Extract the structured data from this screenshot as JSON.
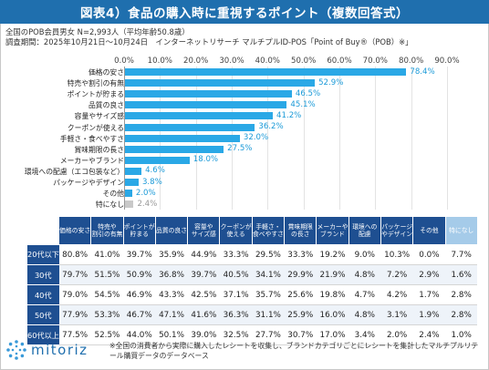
{
  "title": "図表4）食品の購入時に重視するポイント（複数回答式）",
  "meta": {
    "line1": "全国のPOB会員男女 N=2,993人（平均年齢50.8歳）",
    "line2": "調査期間：2025年10月21日～10月24日　インターネットリサーチ マルチプルID-POS「Point of Buy®（POB）※」"
  },
  "chart_data": {
    "type": "bar",
    "orientation": "horizontal",
    "xlim": [
      0,
      90
    ],
    "ticks": [
      "0.0%",
      "10.0%",
      "20.0%",
      "30.0%",
      "40.0%",
      "50.0%",
      "60.0%",
      "70.0%",
      "80.0%",
      "90.0%"
    ],
    "categories": [
      "価格の安さ",
      "特売や割引の有無",
      "ポイントが貯まる",
      "品質の良さ",
      "容量やサイズ感",
      "クーポンが使える",
      "手軽さ・食べやすさ",
      "賞味期限の長さ",
      "メーカーやブランド",
      "環境への配慮（エコ包装など）",
      "パッケージやデザイン",
      "その他",
      "特になし"
    ],
    "values": [
      78.4,
      52.9,
      46.5,
      45.1,
      41.2,
      36.2,
      32.0,
      27.5,
      18.0,
      4.6,
      3.8,
      2.0,
      2.4
    ],
    "labels": [
      "78.4%",
      "52.9%",
      "46.5%",
      "45.1%",
      "41.2%",
      "36.2%",
      "32.0%",
      "27.5%",
      "18.0%",
      "4.6%",
      "3.8%",
      "2.0%",
      "2.4%"
    ],
    "bar_color": "#2aa8e6",
    "highlight_last_color": "#c9c9c9",
    "grid": true
  },
  "table": {
    "columns": [
      "価格の安さ",
      "特売や\n割引の有無",
      "ポイントが\n貯まる",
      "品質の良さ",
      "容量や\nサイズ感",
      "クーポンが\n使える",
      "手軽さ・\n食べやすさ",
      "賞味期限\nの長さ",
      "メーカーや\nブランド",
      "環境への\n配慮",
      "パッケージ\nやデザイン",
      "その他",
      "特になし"
    ],
    "rows": [
      {
        "label": "20代以下",
        "values": [
          "80.8%",
          "41.0%",
          "39.7%",
          "35.9%",
          "44.9%",
          "33.3%",
          "29.5%",
          "33.3%",
          "19.2%",
          "9.0%",
          "10.3%",
          "0.0%",
          "7.7%"
        ]
      },
      {
        "label": "30代",
        "values": [
          "79.7%",
          "51.5%",
          "50.9%",
          "36.8%",
          "39.7%",
          "40.5%",
          "34.1%",
          "29.9%",
          "21.9%",
          "4.8%",
          "7.2%",
          "2.9%",
          "1.6%"
        ]
      },
      {
        "label": "40代",
        "values": [
          "79.0%",
          "54.5%",
          "46.9%",
          "43.3%",
          "42.5%",
          "37.1%",
          "35.7%",
          "25.6%",
          "19.8%",
          "4.7%",
          "4.2%",
          "1.7%",
          "2.8%"
        ]
      },
      {
        "label": "50代",
        "values": [
          "77.9%",
          "53.3%",
          "46.7%",
          "47.1%",
          "41.6%",
          "36.3%",
          "31.1%",
          "25.9%",
          "16.0%",
          "4.8%",
          "3.1%",
          "1.9%",
          "2.8%"
        ]
      },
      {
        "label": "60代以上",
        "values": [
          "77.5%",
          "52.5%",
          "44.0%",
          "50.1%",
          "39.0%",
          "32.5%",
          "27.7%",
          "30.7%",
          "17.0%",
          "3.4%",
          "2.0%",
          "2.4%",
          "1.0%"
        ]
      }
    ]
  },
  "logo_text": "mitoriz",
  "note": "※全国の消費者から実際に購入したレシートを収集し、ブランドカテゴリごとにレシートを集計したマルチプルリテール購買データのデータベース",
  "colors": {
    "title_bg": "#1f6fae",
    "header_bg": "#1e4f91",
    "bar": "#2aa8e6",
    "highlight_header": "#a5cbe9"
  }
}
